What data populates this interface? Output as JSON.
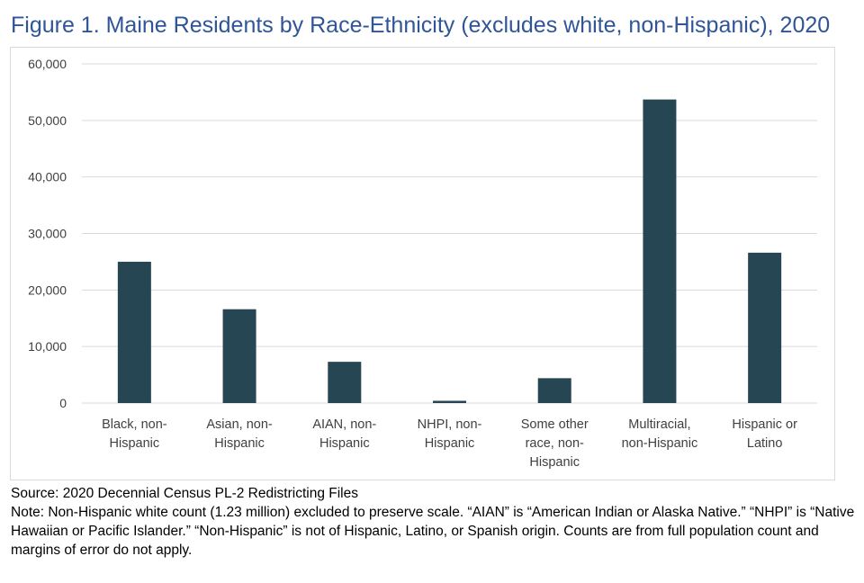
{
  "figure": {
    "title": "Figure 1. Maine Residents by Race-Ethnicity (excludes white, non-Hispanic), 2020",
    "source": "Source: 2020 Decennial Census PL-2 Redistricting Files",
    "note": "Note: Non-Hispanic white count (1.23 million) excluded to preserve scale. “AIAN” is “American Indian or Alaska Native.” “NHPI” is “Native Hawaiian or Pacific Islander.” “Non-Hispanic” is not of Hispanic, Latino, or Spanish origin. Counts are from full population count and margins of error do not apply."
  },
  "colors": {
    "bar": "#264653",
    "grid": "#d9d9d9",
    "title": "#2f5597",
    "text": "#404040"
  },
  "chart_data": {
    "type": "bar",
    "categories": [
      [
        "Black, non-",
        "Hispanic"
      ],
      [
        "Asian, non-",
        "Hispanic"
      ],
      [
        "AIAN, non-",
        "Hispanic"
      ],
      [
        "NHPI, non-",
        "Hispanic"
      ],
      [
        "Some other",
        "race, non-",
        "Hispanic"
      ],
      [
        "Multiracial,",
        "non-Hispanic"
      ],
      [
        "Hispanic or",
        "Latino"
      ]
    ],
    "values": [
      25000,
      16600,
      7300,
      400,
      4400,
      53700,
      26600
    ],
    "ylim": [
      0,
      60000
    ],
    "yticks": [
      0,
      10000,
      20000,
      30000,
      40000,
      50000,
      60000
    ],
    "ytick_labels": [
      "0",
      "10,000",
      "20,000",
      "30,000",
      "40,000",
      "50,000",
      "60,000"
    ],
    "grid": true,
    "legend": "none"
  }
}
